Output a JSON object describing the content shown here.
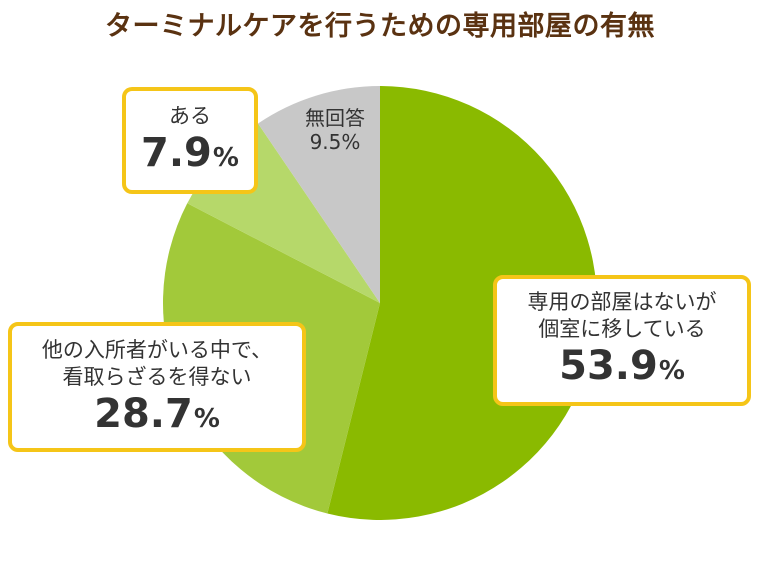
{
  "chart_data": {
    "type": "pie",
    "title": "ターミナルケアを行うための専用部屋の有無",
    "unit": "%",
    "slices": [
      {
        "label": "専用の部屋はないが個室に移している",
        "label_lines": [
          "専用の部屋はないが",
          "個室に移している"
        ],
        "value": 53.9,
        "color": "#8aba00"
      },
      {
        "label": "他の入所者がいる中で、看取らざるを得ない",
        "label_lines": [
          "他の入所者がいる中で、",
          "看取らざるを得ない"
        ],
        "value": 28.7,
        "color": "#a2c93a"
      },
      {
        "label": "ある",
        "label_lines": [
          "ある"
        ],
        "value": 7.9,
        "color": "#b6d86a"
      },
      {
        "label": "無回答",
        "label_lines": [
          "無回答"
        ],
        "value": 9.5,
        "color": "#c8c8c8"
      }
    ]
  }
}
